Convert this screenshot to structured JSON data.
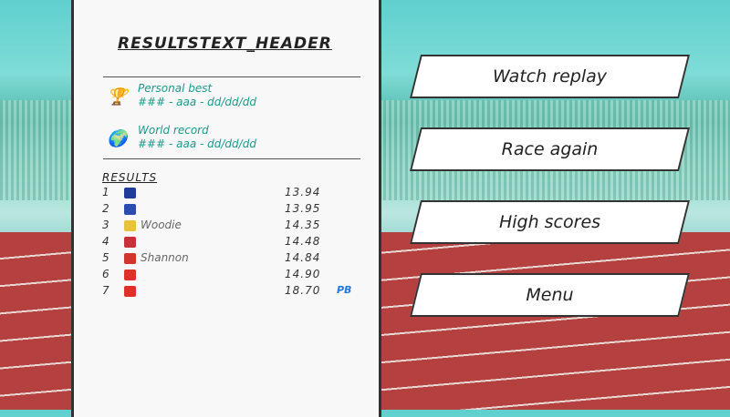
{
  "header": "RESULTSTEXT_HEADER",
  "personal_best": {
    "icon": "trophy-icon",
    "label": "Personal best",
    "value": "### - aaa - dd/dd/dd"
  },
  "world_record": {
    "icon": "globe-icon",
    "label": "World record",
    "value": "### - aaa - dd/dd/dd"
  },
  "results_label": "RESULTS",
  "results": [
    {
      "pos": "1",
      "flag": "#1f3c9a",
      "name": "",
      "time": "13.94",
      "badge": ""
    },
    {
      "pos": "2",
      "flag": "#2a4bb0",
      "name": "",
      "time": "13.95",
      "badge": ""
    },
    {
      "pos": "3",
      "flag": "#e8c23a",
      "name": "Woodie",
      "time": "14.35",
      "badge": ""
    },
    {
      "pos": "4",
      "flag": "#c8313a",
      "name": "",
      "time": "14.48",
      "badge": ""
    },
    {
      "pos": "5",
      "flag": "#d0352f",
      "name": "Shannon",
      "time": "14.84",
      "badge": ""
    },
    {
      "pos": "6",
      "flag": "#e0302c",
      "name": "",
      "time": "14.90",
      "badge": ""
    },
    {
      "pos": "7",
      "flag": "#e0302c",
      "name": "",
      "time": "18.70",
      "badge": "PB"
    }
  ],
  "menu": [
    "Watch replay",
    "Race again",
    "High scores",
    "Menu"
  ]
}
